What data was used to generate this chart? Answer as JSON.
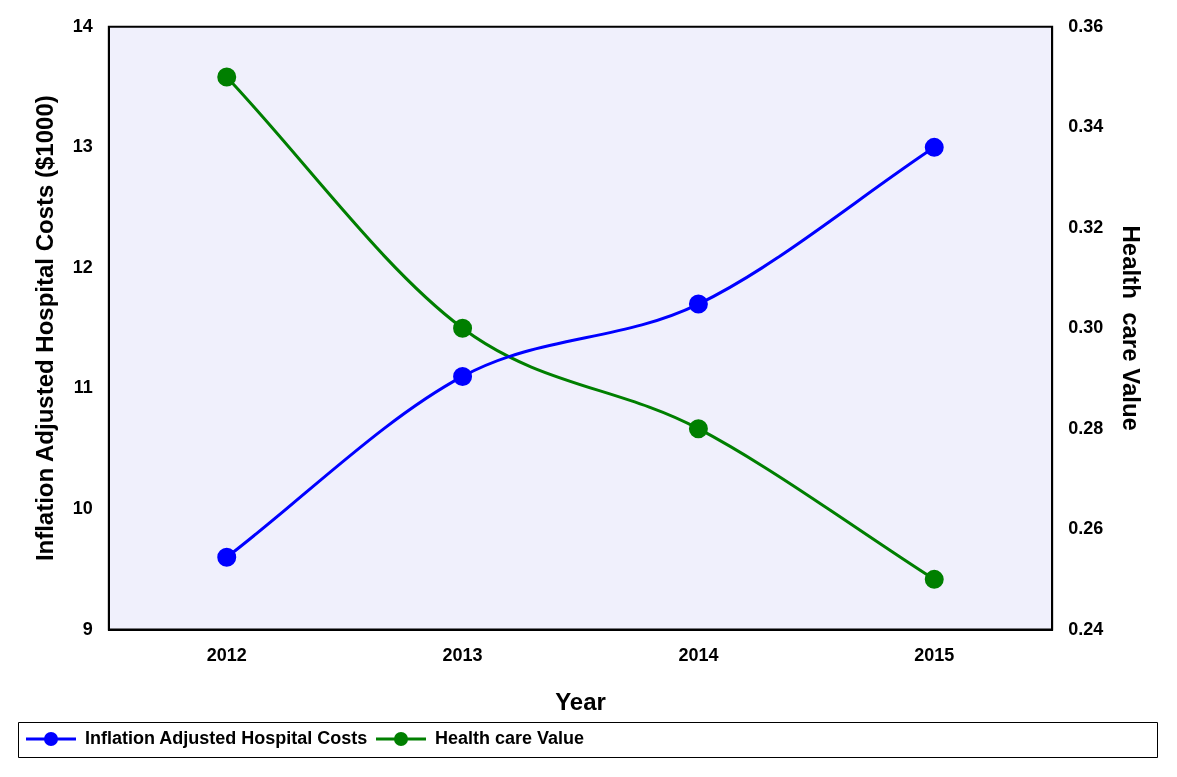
{
  "chart_data": {
    "type": "line",
    "xlabel": "Year",
    "ylabel": "Inflation Adjusted Hospital Costs ($1000)",
    "y2label": "Health  care Value",
    "x": [
      2012,
      2013,
      2014,
      2015
    ],
    "xlim": [
      2011.5,
      2015.5
    ],
    "xticks": [
      2012,
      2013,
      2014,
      2015
    ],
    "ylim": [
      9,
      14
    ],
    "yticks": [
      9,
      10,
      11,
      12,
      13,
      14
    ],
    "y2lim": [
      0.24,
      0.36
    ],
    "y2ticks": [
      {
        "value": 0.24,
        "label": "0.24"
      },
      {
        "value": 0.26,
        "label": "0.26"
      },
      {
        "value": 0.28,
        "label": "0.28"
      },
      {
        "value": 0.3,
        "label": "0.30"
      },
      {
        "value": 0.32,
        "label": "0.32"
      },
      {
        "value": 0.34,
        "label": "0.34"
      },
      {
        "value": 0.36,
        "label": "0.36"
      }
    ],
    "series": [
      {
        "name": "Inflation Adjusted Hospital Costs",
        "color": "#0000ff",
        "values": [
          9.6,
          11.1,
          11.7,
          13.0
        ]
      },
      {
        "name": "Health care Value",
        "color": "#007f00",
        "values": [
          0.35,
          0.3,
          0.28,
          0.25
        ],
        "axis": "y2"
      }
    ],
    "marker": "circle",
    "line_style": "solid",
    "grid": false,
    "legend": "bottom left"
  }
}
